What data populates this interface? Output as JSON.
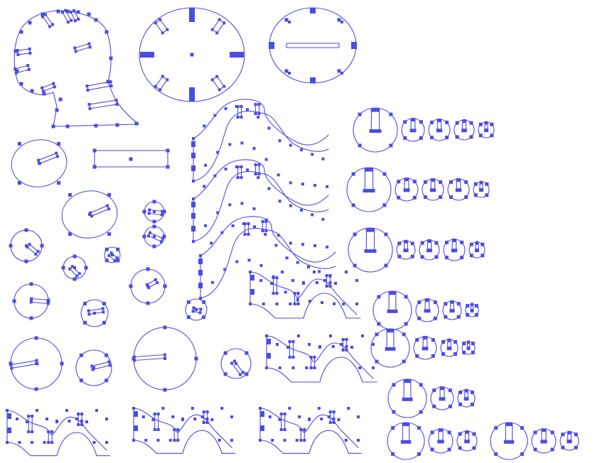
{
  "canvas": {
    "background": "#ffffff"
  },
  "style": {
    "stroke_color": "#4b4be6",
    "node_color": "#4b4be6"
  },
  "parts": [
    {
      "name": "tree-part",
      "kind": "tree"
    },
    {
      "name": "clock-face-large",
      "kind": "clock"
    },
    {
      "name": "oval-plate-with-bar",
      "kind": "oval"
    },
    {
      "name": "wave-part",
      "kind": "wave",
      "count": 3
    },
    {
      "name": "hump-part",
      "kind": "hump",
      "count": 5
    },
    {
      "name": "round-disc",
      "kind": "circle"
    },
    {
      "name": "rectangle-bar",
      "kind": "rect"
    },
    {
      "name": "circle-series",
      "kind": "circle-row",
      "count": 7
    }
  ]
}
